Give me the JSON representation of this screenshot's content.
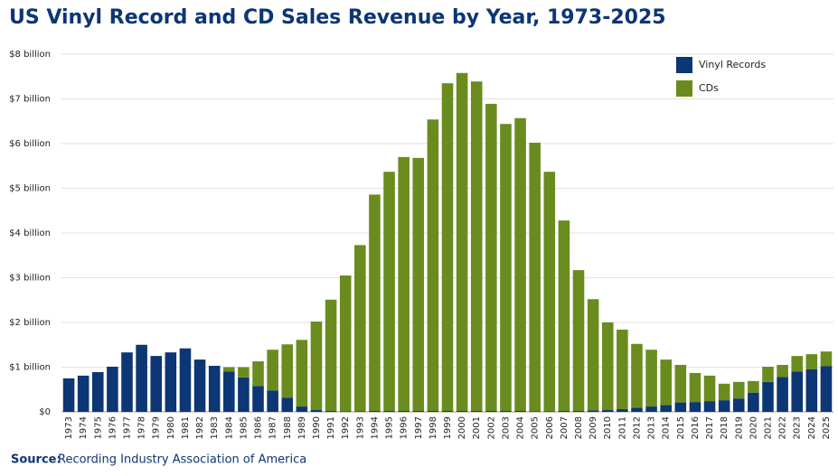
{
  "chart_data": {
    "type": "stacked_bar",
    "title": "US Vinyl Record and CD Sales Revenue by Year, 1973-2025",
    "source_label": "Source:",
    "source": "Recording Industry Association of America",
    "categories": [
      "1973",
      "1974",
      "1975",
      "1976",
      "1977",
      "1978",
      "1979",
      "1980",
      "1981",
      "1982",
      "1983",
      "1984",
      "1985",
      "1986",
      "1987",
      "1988",
      "1989",
      "1990",
      "1991",
      "1992",
      "1993",
      "1994",
      "1995",
      "1996",
      "1997",
      "1998",
      "1999",
      "2000",
      "2001",
      "2002",
      "2003",
      "2004",
      "2005",
      "2006",
      "2007",
      "2008",
      "2009",
      "2010",
      "2011",
      "2012",
      "2013",
      "2014",
      "2015",
      "2016",
      "2017",
      "2018",
      "2019",
      "2020",
      "2021",
      "2022",
      "2023",
      "2024",
      "2025"
    ],
    "series": [
      {
        "name": "Vinyl Records",
        "color": "#0c3674",
        "values": [
          0.75,
          0.81,
          0.89,
          1.01,
          1.33,
          1.5,
          1.25,
          1.33,
          1.42,
          1.17,
          1.03,
          0.9,
          0.77,
          0.58,
          0.48,
          0.32,
          0.12,
          0.04,
          0.02,
          0.01,
          0.01,
          0.02,
          0.02,
          0.02,
          0.02,
          0.02,
          0.02,
          0.02,
          0.02,
          0.02,
          0.02,
          0.02,
          0.01,
          0.01,
          0.02,
          0.02,
          0.03,
          0.04,
          0.06,
          0.09,
          0.12,
          0.15,
          0.21,
          0.22,
          0.24,
          0.26,
          0.3,
          0.43,
          0.67,
          0.78,
          0.9,
          0.95,
          1.02
        ]
      },
      {
        "name": "CDs",
        "color": "#6a8c1f",
        "values": [
          0,
          0,
          0,
          0,
          0,
          0,
          0,
          0,
          0,
          0,
          0,
          0.1,
          0.23,
          0.55,
          0.91,
          1.19,
          1.49,
          1.98,
          2.49,
          3.04,
          3.72,
          4.84,
          5.35,
          5.68,
          5.66,
          6.52,
          7.33,
          7.56,
          7.37,
          6.87,
          6.42,
          6.55,
          6.01,
          5.36,
          4.26,
          3.15,
          2.49,
          1.96,
          1.78,
          1.43,
          1.27,
          1.02,
          0.84,
          0.65,
          0.57,
          0.37,
          0.37,
          0.26,
          0.34,
          0.27,
          0.35,
          0.34,
          0.33
        ]
      }
    ],
    "ylim": [
      0,
      8
    ],
    "yticks": [
      {
        "value": 0,
        "label": "$0"
      },
      {
        "value": 1,
        "label": "$1 billion"
      },
      {
        "value": 2,
        "label": "$2 billion"
      },
      {
        "value": 3,
        "label": "$3 billion"
      },
      {
        "value": 4,
        "label": "$4 billion"
      },
      {
        "value": 5,
        "label": "$5 billion"
      },
      {
        "value": 6,
        "label": "$6 billion"
      },
      {
        "value": 7,
        "label": "$7 billion"
      },
      {
        "value": 8,
        "label": "$8 billion"
      }
    ],
    "grid": true,
    "legend": "upper right"
  }
}
